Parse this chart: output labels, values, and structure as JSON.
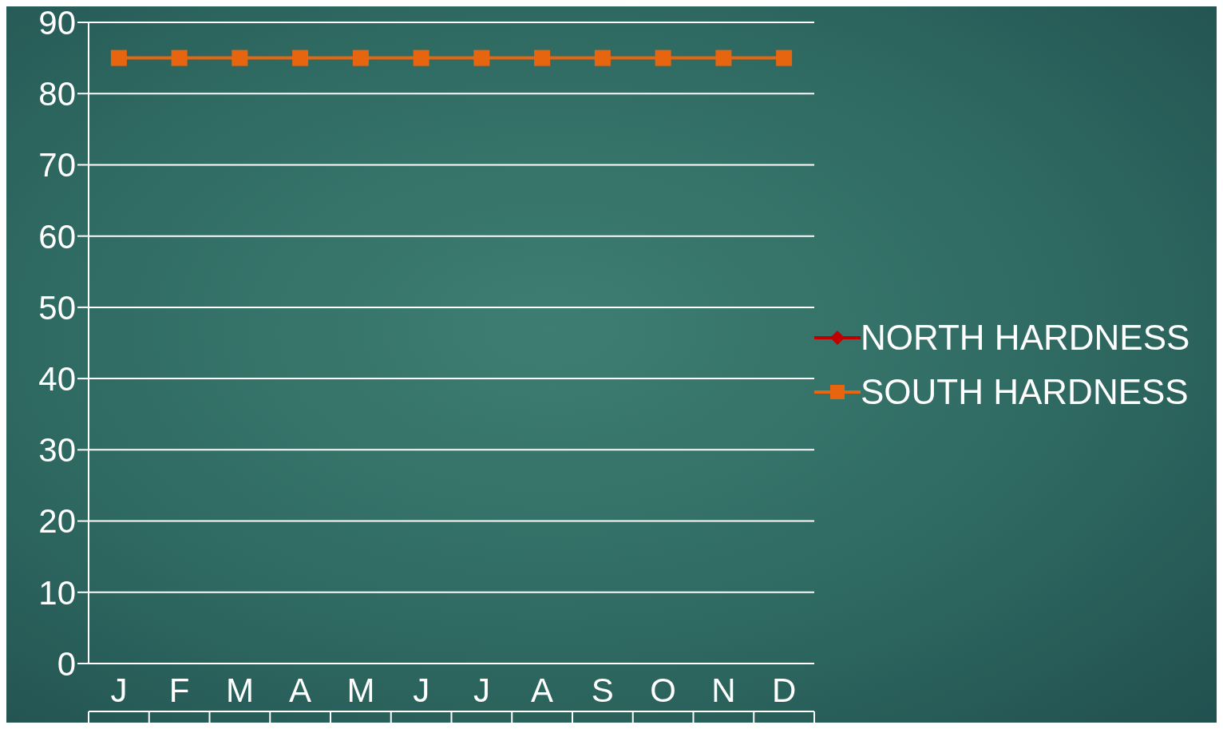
{
  "chart_data": {
    "type": "line",
    "categories": [
      "J",
      "F",
      "M",
      "A",
      "M",
      "J",
      "J",
      "A",
      "S",
      "O",
      "N",
      "D"
    ],
    "series": [
      {
        "name": "NORTH HARDNESS",
        "color": "#c00000",
        "marker": "diamond",
        "values": [
          null,
          null,
          null,
          null,
          null,
          null,
          null,
          null,
          null,
          null,
          null,
          null
        ]
      },
      {
        "name": "SOUTH HARDNESS",
        "color": "#e8650f",
        "marker": "square",
        "values": [
          85,
          85,
          85,
          85,
          85,
          85,
          85,
          85,
          85,
          85,
          85,
          85
        ]
      }
    ],
    "ylim": [
      0,
      90
    ],
    "yticks": [
      0,
      10,
      20,
      30,
      40,
      50,
      60,
      70,
      80,
      90
    ],
    "grid": "y",
    "legend": "right"
  }
}
